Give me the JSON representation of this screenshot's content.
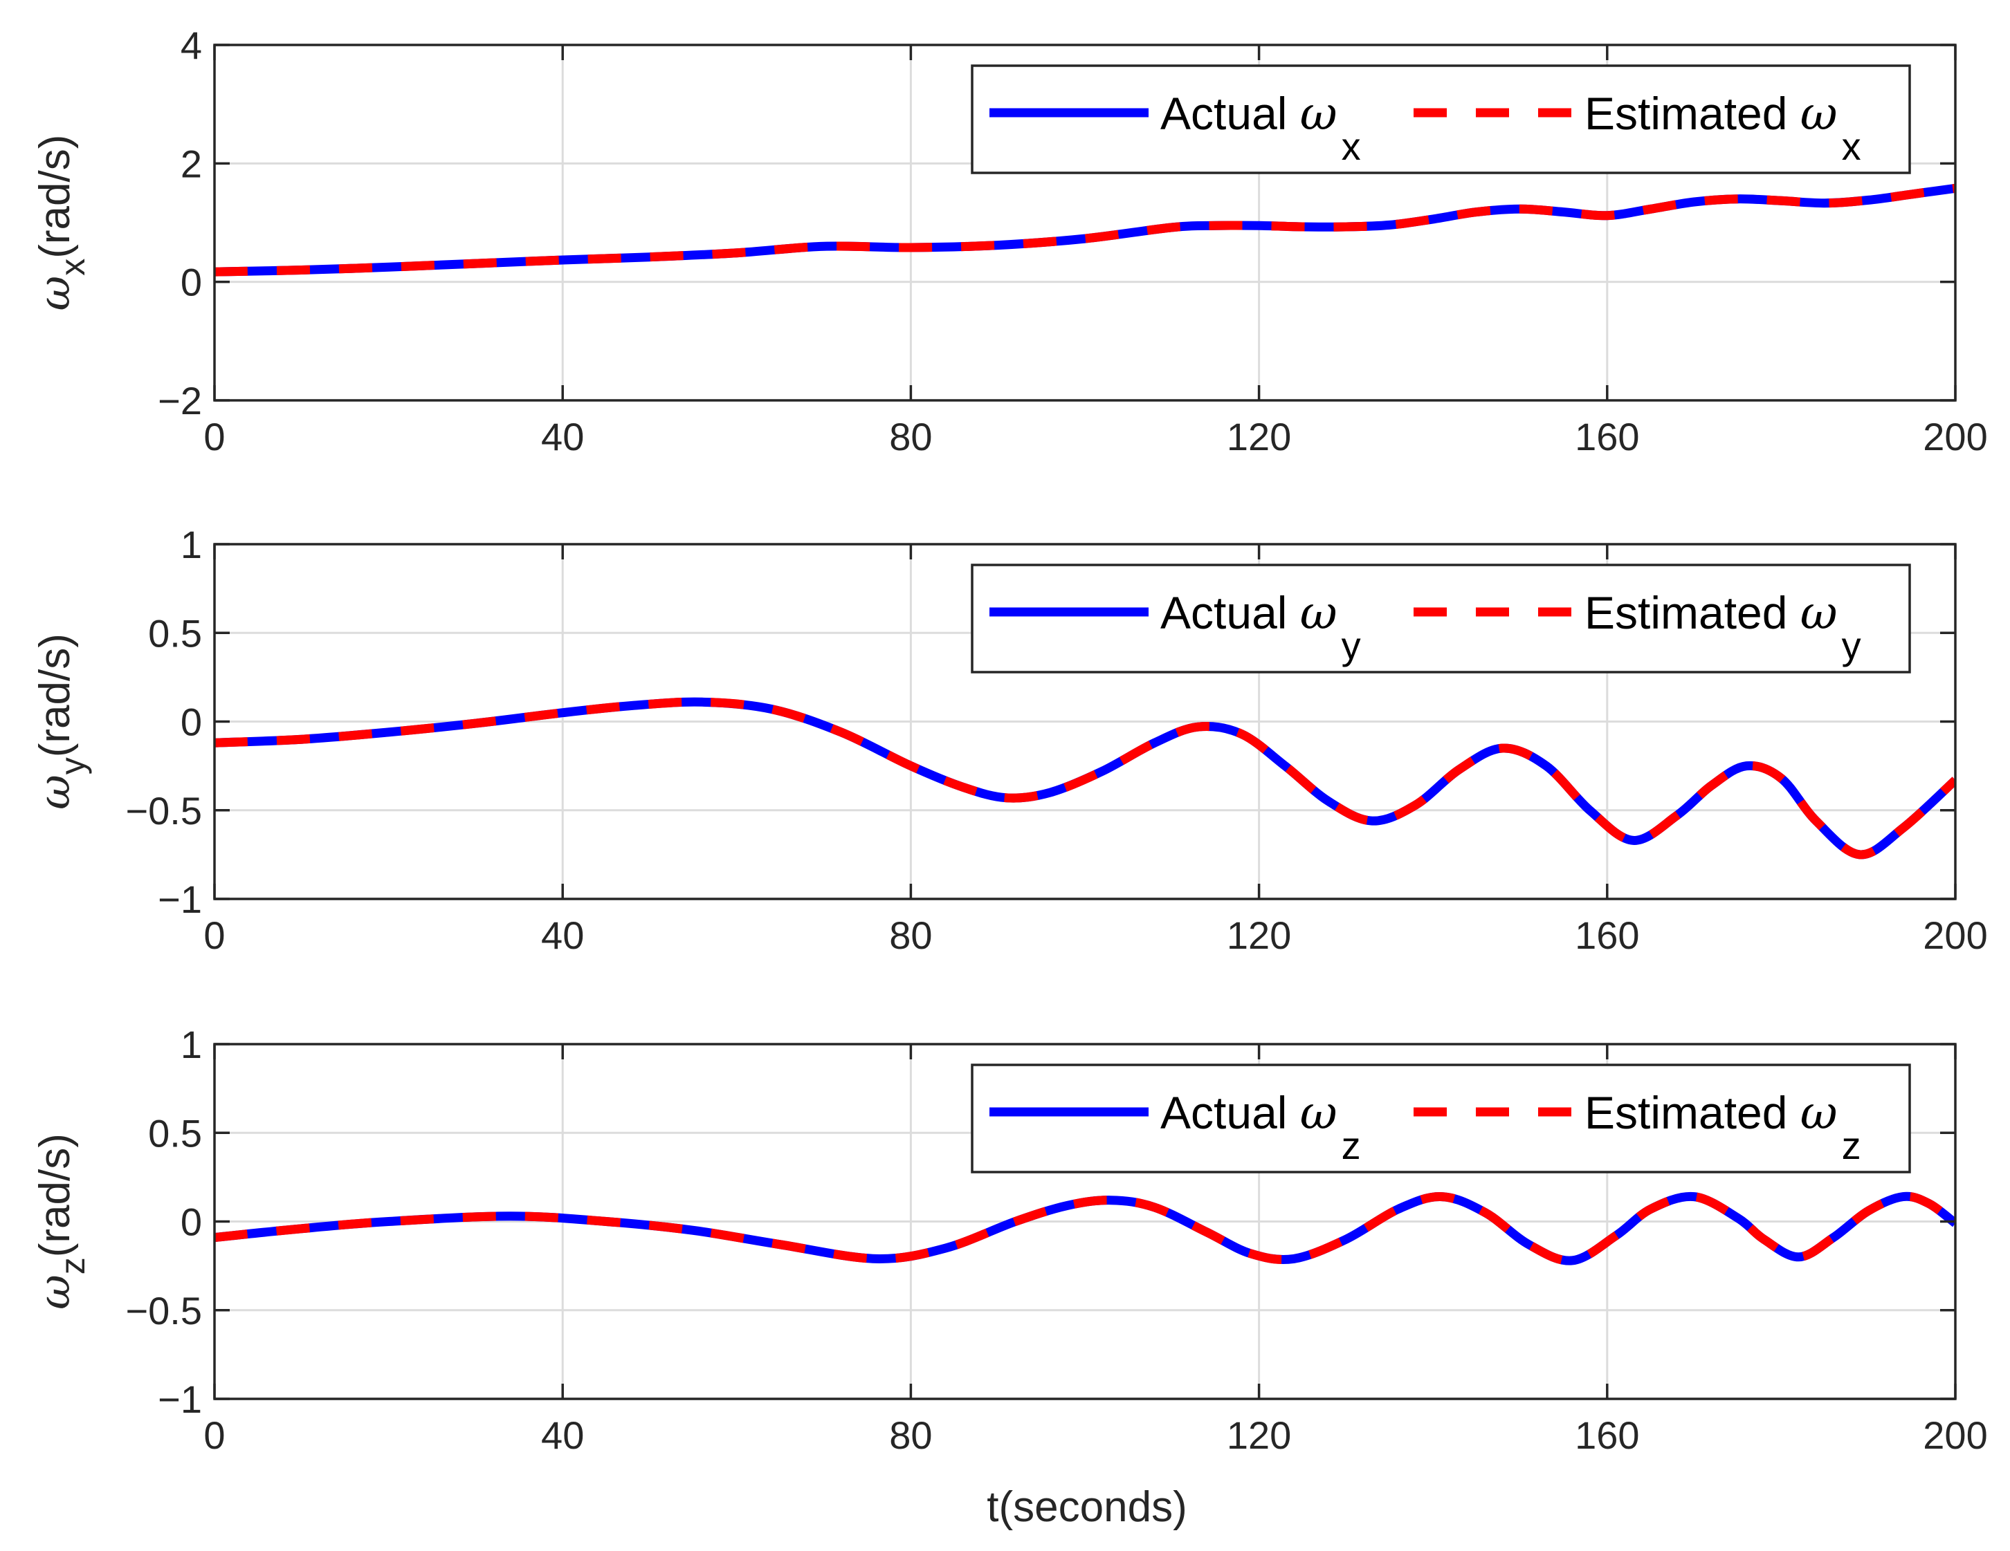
{
  "figure": {
    "xlabel": "t(seconds)"
  },
  "chart_data": [
    {
      "type": "line",
      "title": "",
      "ylabel": {
        "symbol": "ω",
        "sub": "x",
        "unit": "(rad/s)"
      },
      "xlim": [
        0,
        200
      ],
      "ylim": [
        -2,
        4
      ],
      "xticks": [
        "0",
        "40",
        "80",
        "120",
        "160",
        "200"
      ],
      "yticks": [
        "−2",
        "0",
        "2",
        "4"
      ],
      "ytick_values": [
        -2,
        0,
        2,
        4
      ],
      "grid": true,
      "legend_position": "top-right",
      "legend": [
        {
          "prefix": "Actual ",
          "symbol": "ω",
          "sub": "x"
        },
        {
          "prefix": "Estimated ",
          "symbol": "ω",
          "sub": "x"
        }
      ],
      "x": [
        0,
        10,
        20,
        30,
        40,
        50,
        60,
        70,
        80,
        90,
        100,
        110,
        115,
        120,
        125,
        130,
        135,
        140,
        145,
        150,
        155,
        160,
        165,
        170,
        175,
        180,
        185,
        190,
        195,
        200
      ],
      "series": [
        {
          "name": "Actual ωx",
          "color": "#0000ff",
          "style": "solid",
          "values": [
            0.17,
            0.2,
            0.25,
            0.31,
            0.37,
            0.42,
            0.49,
            0.6,
            0.58,
            0.62,
            0.73,
            0.92,
            0.95,
            0.95,
            0.93,
            0.93,
            0.96,
            1.06,
            1.18,
            1.23,
            1.18,
            1.12,
            1.23,
            1.35,
            1.4,
            1.37,
            1.33,
            1.38,
            1.48,
            1.58
          ]
        },
        {
          "name": "Estimated ωx",
          "color": "#ff0000",
          "style": "dashed",
          "values": [
            0.17,
            0.2,
            0.25,
            0.31,
            0.37,
            0.42,
            0.49,
            0.6,
            0.58,
            0.62,
            0.73,
            0.92,
            0.95,
            0.95,
            0.93,
            0.93,
            0.96,
            1.06,
            1.18,
            1.23,
            1.18,
            1.12,
            1.23,
            1.35,
            1.4,
            1.37,
            1.33,
            1.38,
            1.48,
            1.58
          ]
        }
      ]
    },
    {
      "type": "line",
      "title": "",
      "ylabel": {
        "symbol": "ω",
        "sub": "y",
        "unit": "(rad/s)"
      },
      "xlim": [
        0,
        200
      ],
      "ylim": [
        -1,
        1
      ],
      "xticks": [
        "0",
        "40",
        "80",
        "120",
        "160",
        "200"
      ],
      "yticks": [
        "−1",
        "−0.5",
        "0",
        "0.5",
        "1"
      ],
      "ytick_values": [
        -1,
        -0.5,
        0,
        0.5,
        1
      ],
      "grid": true,
      "legend_position": "top-right",
      "legend": [
        {
          "prefix": "Actual ",
          "symbol": "ω",
          "sub": "y"
        },
        {
          "prefix": "Estimated ",
          "symbol": "ω",
          "sub": "y"
        }
      ],
      "x": [
        0,
        10,
        20,
        30,
        40,
        48,
        56,
        64,
        72,
        80,
        86,
        91,
        96,
        102,
        108,
        113,
        118,
        123,
        128,
        133,
        138,
        143,
        148,
        153,
        158,
        163,
        168,
        172,
        176,
        180,
        184,
        189,
        194,
        200
      ],
      "series": [
        {
          "name": "Actual ωy",
          "color": "#0000ff",
          "style": "solid",
          "values": [
            -0.12,
            -0.1,
            -0.06,
            -0.01,
            0.05,
            0.09,
            0.11,
            0.07,
            -0.06,
            -0.25,
            -0.37,
            -0.43,
            -0.4,
            -0.28,
            -0.12,
            -0.03,
            -0.07,
            -0.25,
            -0.45,
            -0.56,
            -0.47,
            -0.27,
            -0.15,
            -0.25,
            -0.5,
            -0.67,
            -0.53,
            -0.36,
            -0.25,
            -0.32,
            -0.56,
            -0.75,
            -0.6,
            -0.33
          ]
        },
        {
          "name": "Estimated ωy",
          "color": "#ff0000",
          "style": "dashed",
          "values": [
            -0.12,
            -0.1,
            -0.06,
            -0.01,
            0.05,
            0.09,
            0.11,
            0.07,
            -0.06,
            -0.25,
            -0.37,
            -0.43,
            -0.4,
            -0.28,
            -0.12,
            -0.03,
            -0.07,
            -0.25,
            -0.45,
            -0.56,
            -0.47,
            -0.27,
            -0.15,
            -0.25,
            -0.5,
            -0.67,
            -0.53,
            -0.36,
            -0.25,
            -0.32,
            -0.56,
            -0.75,
            -0.6,
            -0.33
          ]
        }
      ]
    },
    {
      "type": "line",
      "title": "",
      "ylabel": {
        "symbol": "ω",
        "sub": "z",
        "unit": "(rad/s)"
      },
      "xlim": [
        0,
        200
      ],
      "ylim": [
        -1,
        1
      ],
      "xticks": [
        "0",
        "40",
        "80",
        "120",
        "160",
        "200"
      ],
      "yticks": [
        "−1",
        "−0.5",
        "0",
        "0.5",
        "1"
      ],
      "ytick_values": [
        -1,
        -0.5,
        0,
        0.5,
        1
      ],
      "grid": true,
      "legend_position": "top-right",
      "legend": [
        {
          "prefix": "Actual ",
          "symbol": "ω",
          "sub": "z"
        },
        {
          "prefix": "Estimated ",
          "symbol": "ω",
          "sub": "z"
        }
      ],
      "x": [
        0,
        10,
        20,
        34,
        45,
        55,
        65,
        76,
        84,
        92,
        98,
        103,
        108,
        114,
        119,
        124,
        130,
        136,
        141,
        146,
        151,
        156,
        161,
        165,
        170,
        175,
        178,
        182,
        186,
        190,
        194,
        197,
        200
      ],
      "series": [
        {
          "name": "Actual ωz",
          "color": "#0000ff",
          "style": "solid",
          "values": [
            -0.09,
            -0.04,
            0.0,
            0.03,
            0.0,
            -0.05,
            -0.13,
            -0.21,
            -0.15,
            0.0,
            0.09,
            0.12,
            0.08,
            -0.06,
            -0.18,
            -0.21,
            -0.1,
            0.07,
            0.14,
            0.05,
            -0.13,
            -0.22,
            -0.08,
            0.07,
            0.14,
            0.02,
            -0.1,
            -0.2,
            -0.09,
            0.06,
            0.14,
            0.1,
            -0.01
          ]
        },
        {
          "name": "Estimated ωz",
          "color": "#ff0000",
          "style": "dashed",
          "values": [
            -0.09,
            -0.04,
            0.0,
            0.03,
            0.0,
            -0.05,
            -0.13,
            -0.21,
            -0.15,
            0.0,
            0.09,
            0.12,
            0.08,
            -0.06,
            -0.18,
            -0.21,
            -0.1,
            0.07,
            0.14,
            0.05,
            -0.13,
            -0.22,
            -0.08,
            0.07,
            0.14,
            0.02,
            -0.1,
            -0.2,
            -0.09,
            0.06,
            0.14,
            0.1,
            -0.01
          ]
        }
      ]
    }
  ]
}
